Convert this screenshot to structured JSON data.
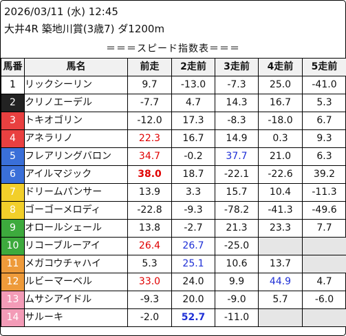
{
  "header": {
    "datetime": "2026/03/11 (水) 12:45",
    "race": "大井4R 築地川賞(3歳7) ダ1200m",
    "subtitle": "＝＝＝スピード指数表＝＝＝"
  },
  "columns": [
    "馬番",
    "馬名",
    "前走",
    "2走前",
    "3走前",
    "4走前",
    "5走前"
  ],
  "colors": {
    "red": "#e00000",
    "blue": "#1e2fd6",
    "blank": "#e6e6e6"
  },
  "rows": [
    {
      "no": "1",
      "name": "リックシーリン",
      "bg": "#ffffff",
      "fg": "#000000",
      "vals": [
        {
          "v": "9.7"
        },
        {
          "v": "-13.0"
        },
        {
          "v": "-7.3"
        },
        {
          "v": "25.0"
        },
        {
          "v": "-41.0"
        }
      ]
    },
    {
      "no": "2",
      "name": "クリノエーデル",
      "bg": "#222222",
      "fg": "#ffffff",
      "vals": [
        {
          "v": "-7.7"
        },
        {
          "v": "4.7"
        },
        {
          "v": "14.3"
        },
        {
          "v": "16.7"
        },
        {
          "v": "5.3"
        }
      ]
    },
    {
      "no": "3",
      "name": "トキオゴリン",
      "bg": "#e94040",
      "fg": "#ffffff",
      "vals": [
        {
          "v": "-12.0"
        },
        {
          "v": "17.3"
        },
        {
          "v": "-8.3"
        },
        {
          "v": "-18.0"
        },
        {
          "v": "6.7"
        }
      ]
    },
    {
      "no": "4",
      "name": "アネラリノ",
      "bg": "#e94040",
      "fg": "#ffffff",
      "vals": [
        {
          "v": "22.3",
          "c": "red"
        },
        {
          "v": "16.7"
        },
        {
          "v": "14.9"
        },
        {
          "v": "0.3"
        },
        {
          "v": "9.3"
        }
      ]
    },
    {
      "no": "5",
      "name": "フレアリングバロン",
      "bg": "#3a6fd8",
      "fg": "#ffffff",
      "vals": [
        {
          "v": "34.7",
          "c": "red"
        },
        {
          "v": "-0.2"
        },
        {
          "v": "37.7",
          "c": "blue"
        },
        {
          "v": "21.0"
        },
        {
          "v": "6.3"
        }
      ]
    },
    {
      "no": "6",
      "name": "アイルマジック",
      "bg": "#3a6fd8",
      "fg": "#ffffff",
      "vals": [
        {
          "v": "38.0",
          "c": "red",
          "b": true
        },
        {
          "v": "18.7"
        },
        {
          "v": "-22.1"
        },
        {
          "v": "-22.6"
        },
        {
          "v": "39.2"
        }
      ]
    },
    {
      "no": "7",
      "name": "ドリームパンサー",
      "bg": "#f2cf2a",
      "fg": "#ffffff",
      "vals": [
        {
          "v": "13.9"
        },
        {
          "v": "3.3"
        },
        {
          "v": "15.7"
        },
        {
          "v": "10.4"
        },
        {
          "v": "-11.3"
        }
      ]
    },
    {
      "no": "8",
      "name": "ゴーゴーメロディ",
      "bg": "#f2cf2a",
      "fg": "#ffffff",
      "vals": [
        {
          "v": "-22.8"
        },
        {
          "v": "-9.3"
        },
        {
          "v": "-78.2"
        },
        {
          "v": "-41.3"
        },
        {
          "v": "-49.6"
        }
      ]
    },
    {
      "no": "9",
      "name": "オロールシェール",
      "bg": "#3daa3d",
      "fg": "#ffffff",
      "vals": [
        {
          "v": "13.8"
        },
        {
          "v": "-2.7"
        },
        {
          "v": "21.3"
        },
        {
          "v": "23.3"
        },
        {
          "v": "7.7"
        }
      ]
    },
    {
      "no": "10",
      "name": "リコーブルーアイ",
      "bg": "#3daa3d",
      "fg": "#ffffff",
      "vals": [
        {
          "v": "26.4",
          "c": "red"
        },
        {
          "v": "26.7",
          "c": "blue"
        },
        {
          "v": "-25.0"
        },
        {
          "v": ""
        },
        {
          "v": ""
        }
      ]
    },
    {
      "no": "11",
      "name": "メガコウチャハイ",
      "bg": "#ee9a3a",
      "fg": "#ffffff",
      "vals": [
        {
          "v": "5.3"
        },
        {
          "v": "25.1",
          "c": "blue"
        },
        {
          "v": "10.6"
        },
        {
          "v": "13.7"
        },
        {
          "v": ""
        }
      ]
    },
    {
      "no": "12",
      "name": "ルビーマーベル",
      "bg": "#ee9a3a",
      "fg": "#ffffff",
      "vals": [
        {
          "v": "33.0",
          "c": "red"
        },
        {
          "v": "24.0"
        },
        {
          "v": "9.9"
        },
        {
          "v": "44.9",
          "c": "blue"
        },
        {
          "v": "4.7"
        }
      ]
    },
    {
      "no": "13",
      "name": "ムサシアイドル",
      "bg": "#f39bb7",
      "fg": "#ffffff",
      "vals": [
        {
          "v": "-9.3"
        },
        {
          "v": "20.0"
        },
        {
          "v": "-9.0"
        },
        {
          "v": "5.7"
        },
        {
          "v": "-6.0"
        }
      ]
    },
    {
      "no": "14",
      "name": "サルーキ",
      "bg": "#f39bb7",
      "fg": "#ffffff",
      "vals": [
        {
          "v": "-2.0"
        },
        {
          "v": "52.7",
          "c": "blue",
          "b": true
        },
        {
          "v": "-11.0"
        },
        {
          "v": ""
        },
        {
          "v": ""
        }
      ]
    }
  ]
}
